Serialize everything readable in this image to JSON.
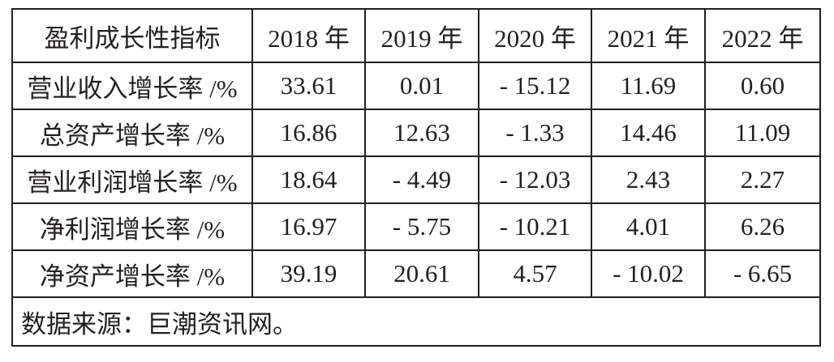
{
  "table": {
    "header": [
      "盈利成长性指标",
      "2018 年",
      "2019 年",
      "2020 年",
      "2021 年",
      "2022 年"
    ],
    "rows": [
      [
        "营业收入增长率 /%",
        "33.61",
        "0.01",
        "- 15.12",
        "11.69",
        "0.60"
      ],
      [
        "总资产增长率 /%",
        "16.86",
        "12.63",
        "- 1.33",
        "14.46",
        "11.09"
      ],
      [
        "营业利润增长率 /%",
        "18.64",
        "- 4.49",
        "- 12.03",
        "2.43",
        "2.27"
      ],
      [
        "净利润增长率 /%",
        "16.97",
        "- 5.75",
        "- 10.21",
        "4.01",
        "6.26"
      ],
      [
        "净资产增长率 /%",
        "39.19",
        "20.61",
        "4.57",
        "- 10.02",
        "- 6.65"
      ]
    ],
    "source": "数据来源：巨潮资讯网。"
  }
}
